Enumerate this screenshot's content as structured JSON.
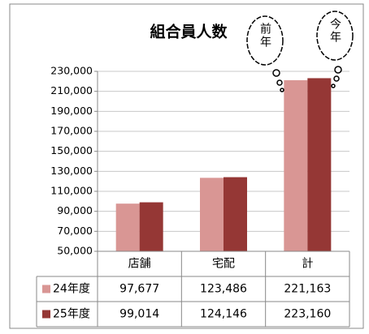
{
  "chart_data": {
    "type": "bar",
    "title": "組合員人数",
    "annotations": [
      "前年",
      "今年"
    ],
    "categories": [
      "店舗",
      "宅配",
      "計"
    ],
    "series": [
      {
        "name": "24年度",
        "color": "#d99694",
        "values": [
          97677,
          123486,
          221163
        ],
        "value_labels": [
          "97,677",
          "123,486",
          "221,163"
        ]
      },
      {
        "name": "25年度",
        "color": "#953735",
        "values": [
          99014,
          124146,
          223160
        ],
        "value_labels": [
          "99,014",
          "124,146",
          "223,160"
        ]
      }
    ],
    "ylim": [
      50000,
      230000
    ],
    "yticks": [
      {
        "value": 50000,
        "label": "50,000"
      },
      {
        "value": 70000,
        "label": "70,000"
      },
      {
        "value": 90000,
        "label": "90,000"
      },
      {
        "value": 110000,
        "label": "110,000"
      },
      {
        "value": 130000,
        "label": "130,000"
      },
      {
        "value": 150000,
        "label": "150,000"
      },
      {
        "value": 170000,
        "label": "170,000"
      },
      {
        "value": 190000,
        "label": "190,000"
      },
      {
        "value": 210000,
        "label": "210,000"
      },
      {
        "value": 230000,
        "label": "230,000"
      }
    ],
    "grid": true
  }
}
